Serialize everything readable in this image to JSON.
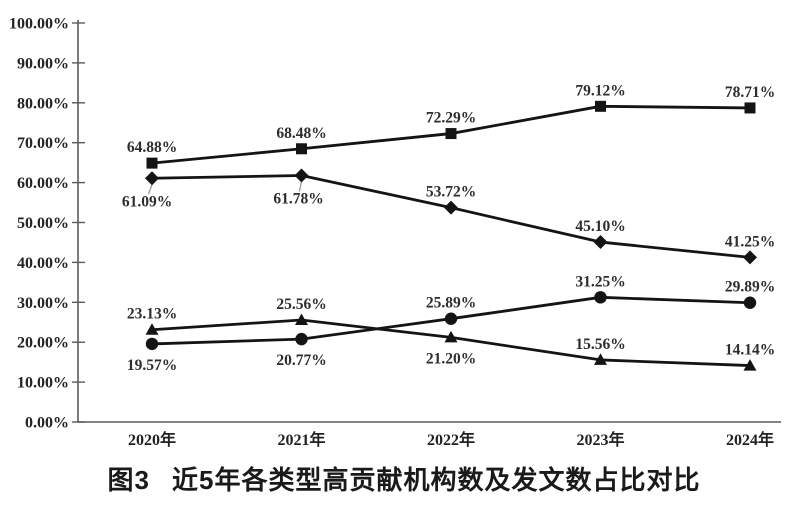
{
  "caption": {
    "label": "图3",
    "title": "近5年各类型高贡献机构数及发文数占比对比"
  },
  "chart_data": {
    "type": "line",
    "title": "图3 近5年各类型高贡献机构数及发文数占比对比",
    "xlabel": "",
    "ylabel": "",
    "ylim": [
      0,
      100
    ],
    "grid": false,
    "legend": "none",
    "y_tick_labels": [
      "0.00%",
      "10.00%",
      "20.00%",
      "30.00%",
      "40.00%",
      "50.00%",
      "60.00%",
      "70.00%",
      "80.00%",
      "90.00%",
      "100.00%"
    ],
    "categories": [
      "2020年",
      "2021年",
      "2022年",
      "2023年",
      "2024年"
    ],
    "line_color": "#141414",
    "axis_color": "#5a5a5a",
    "label_color": "#2d2d2d",
    "leader_color": "#9a9a9a",
    "series": [
      {
        "name": "square-marker-series",
        "marker": "square",
        "values": [
          64.88,
          68.48,
          72.29,
          79.12,
          78.71
        ],
        "labels": [
          "64.88%",
          "68.48%",
          "72.29%",
          "79.12%",
          "78.71%"
        ],
        "label_positions": [
          "above",
          "above",
          "above",
          "above",
          "above"
        ],
        "leader_lines": [
          false,
          false,
          false,
          false,
          false
        ],
        "label_dx": [
          0,
          0,
          0,
          0,
          0
        ]
      },
      {
        "name": "diamond-marker-series",
        "marker": "diamond",
        "values": [
          61.09,
          61.78,
          53.72,
          45.1,
          41.25
        ],
        "labels": [
          "61.09%",
          "61.78%",
          "53.72%",
          "45.10%",
          "41.25%"
        ],
        "label_positions": [
          "below",
          "below",
          "above",
          "above",
          "above"
        ],
        "leader_lines": [
          true,
          true,
          false,
          false,
          false
        ],
        "label_dx": [
          -5,
          -3,
          0,
          0,
          0
        ]
      },
      {
        "name": "circle-marker-series",
        "marker": "circle",
        "values": [
          19.57,
          20.77,
          25.89,
          31.25,
          29.89
        ],
        "labels": [
          "19.57%",
          "20.77%",
          "25.89%",
          "31.25%",
          "29.89%"
        ],
        "label_positions": [
          "below",
          "below",
          "above",
          "above",
          "above"
        ],
        "leader_lines": [
          false,
          false,
          false,
          false,
          false
        ],
        "label_dx": [
          0,
          0,
          0,
          0,
          0
        ]
      },
      {
        "name": "triangle-marker-series",
        "marker": "triangle",
        "values": [
          23.13,
          25.56,
          21.2,
          15.56,
          14.14
        ],
        "labels": [
          "23.13%",
          "25.56%",
          "21.20%",
          "15.56%",
          "14.14%"
        ],
        "label_positions": [
          "above",
          "above",
          "below",
          "above",
          "above"
        ],
        "leader_lines": [
          false,
          false,
          false,
          false,
          false
        ],
        "label_dx": [
          0,
          0,
          0,
          0,
          0
        ]
      }
    ]
  }
}
